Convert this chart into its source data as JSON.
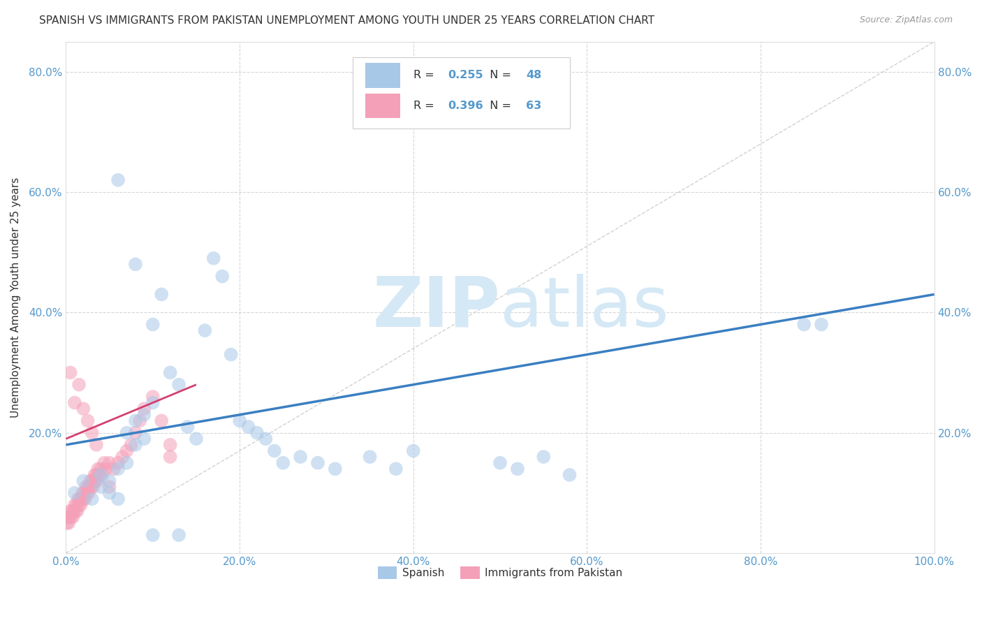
{
  "title": "SPANISH VS IMMIGRANTS FROM PAKISTAN UNEMPLOYMENT AMONG YOUTH UNDER 25 YEARS CORRELATION CHART",
  "source": "Source: ZipAtlas.com",
  "ylabel": "Unemployment Among Youth under 25 years",
  "xlim": [
    0.0,
    1.0
  ],
  "ylim": [
    0.0,
    0.85
  ],
  "xticks": [
    0.0,
    0.2,
    0.4,
    0.6,
    0.8,
    1.0
  ],
  "yticks": [
    0.0,
    0.2,
    0.4,
    0.6,
    0.8
  ],
  "xticklabels": [
    "0.0%",
    "20.0%",
    "40.0%",
    "60.0%",
    "80.0%",
    "100.0%"
  ],
  "yticklabels": [
    "",
    "20.0%",
    "40.0%",
    "60.0%",
    "80.0%"
  ],
  "legend_label1": "Spanish",
  "legend_label2": "Immigrants from Pakistan",
  "R1": "0.255",
  "N1": "48",
  "R2": "0.396",
  "N2": "63",
  "color_spanish": "#a8c8e8",
  "color_pakistan": "#f4a0b8",
  "color_spanish_line": "#3a7fc1",
  "color_pakistan_line": "#d44070",
  "color_diagonal": "#cccccc",
  "background_color": "#ffffff",
  "grid_color": "#cccccc",
  "tick_color": "#5599cc",
  "watermark_color": "#d5e8f5",
  "spanish_line_x0": 0.0,
  "spanish_line_x1": 1.0,
  "spanish_line_y0": 0.18,
  "spanish_line_y1": 0.43,
  "pakistan_line_x0": 0.0,
  "pakistan_line_x1": 0.15,
  "pakistan_line_y0": 0.19,
  "pakistan_line_y1": 0.28,
  "spanish_x": [
    0.01,
    0.02,
    0.03,
    0.04,
    0.04,
    0.05,
    0.05,
    0.06,
    0.06,
    0.07,
    0.07,
    0.08,
    0.08,
    0.09,
    0.09,
    0.1,
    0.1,
    0.11,
    0.12,
    0.13,
    0.14,
    0.15,
    0.16,
    0.17,
    0.18,
    0.19,
    0.2,
    0.21,
    0.22,
    0.23,
    0.24,
    0.25,
    0.27,
    0.29,
    0.31,
    0.35,
    0.38,
    0.4,
    0.5,
    0.52,
    0.55,
    0.58,
    0.85,
    0.87,
    0.06,
    0.08,
    0.1,
    0.13
  ],
  "spanish_y": [
    0.1,
    0.12,
    0.09,
    0.11,
    0.13,
    0.1,
    0.12,
    0.09,
    0.14,
    0.2,
    0.15,
    0.22,
    0.18,
    0.23,
    0.19,
    0.38,
    0.25,
    0.43,
    0.3,
    0.28,
    0.21,
    0.19,
    0.37,
    0.49,
    0.46,
    0.33,
    0.22,
    0.21,
    0.2,
    0.19,
    0.17,
    0.15,
    0.16,
    0.15,
    0.14,
    0.16,
    0.14,
    0.17,
    0.15,
    0.14,
    0.16,
    0.13,
    0.38,
    0.38,
    0.62,
    0.48,
    0.03,
    0.03
  ],
  "pakistan_x": [
    0.001,
    0.002,
    0.003,
    0.004,
    0.005,
    0.006,
    0.007,
    0.008,
    0.009,
    0.01,
    0.011,
    0.012,
    0.013,
    0.014,
    0.015,
    0.016,
    0.017,
    0.018,
    0.019,
    0.02,
    0.021,
    0.022,
    0.023,
    0.024,
    0.025,
    0.026,
    0.027,
    0.028,
    0.029,
    0.03,
    0.031,
    0.032,
    0.033,
    0.034,
    0.035,
    0.036,
    0.037,
    0.038,
    0.04,
    0.042,
    0.044,
    0.046,
    0.05,
    0.055,
    0.06,
    0.065,
    0.07,
    0.075,
    0.08,
    0.085,
    0.09,
    0.1,
    0.11,
    0.12,
    0.005,
    0.01,
    0.015,
    0.02,
    0.025,
    0.03,
    0.035,
    0.05,
    0.12
  ],
  "pakistan_y": [
    0.05,
    0.06,
    0.05,
    0.06,
    0.07,
    0.06,
    0.07,
    0.06,
    0.07,
    0.08,
    0.07,
    0.08,
    0.07,
    0.09,
    0.08,
    0.09,
    0.08,
    0.09,
    0.1,
    0.09,
    0.1,
    0.09,
    0.11,
    0.1,
    0.11,
    0.1,
    0.11,
    0.12,
    0.11,
    0.12,
    0.11,
    0.12,
    0.13,
    0.12,
    0.13,
    0.12,
    0.14,
    0.13,
    0.14,
    0.13,
    0.15,
    0.14,
    0.15,
    0.14,
    0.15,
    0.16,
    0.17,
    0.18,
    0.2,
    0.22,
    0.24,
    0.26,
    0.22,
    0.18,
    0.3,
    0.25,
    0.28,
    0.24,
    0.22,
    0.2,
    0.18,
    0.11,
    0.16
  ]
}
